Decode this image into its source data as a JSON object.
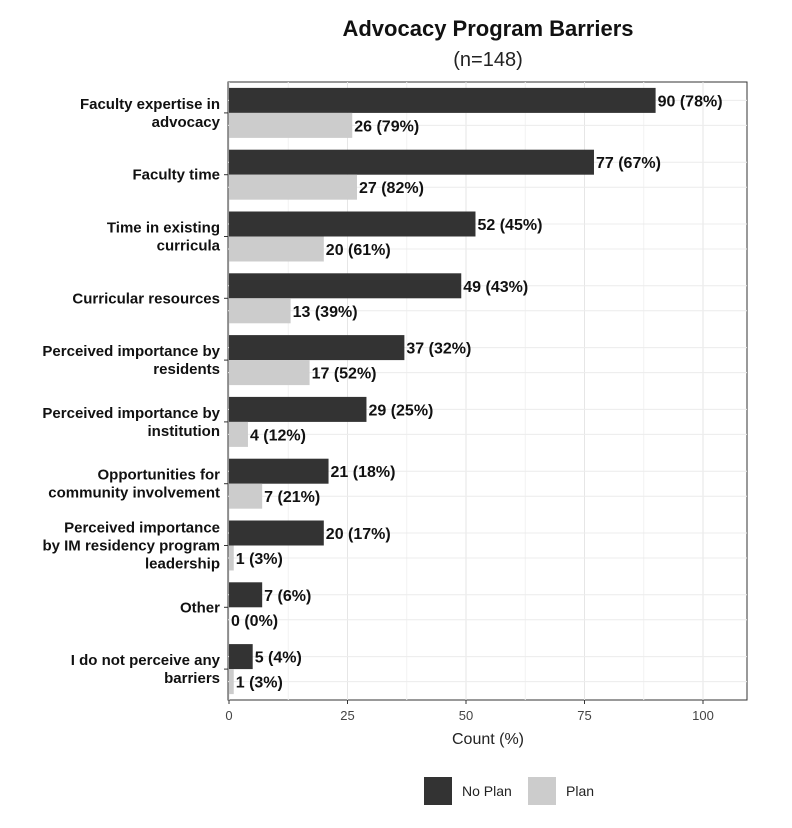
{
  "chart_data": {
    "type": "bar",
    "orientation": "horizontal",
    "title": "Advocacy Program Barriers",
    "subtitle": "(n=148)",
    "xlabel": "Count (%)",
    "ylabel": "",
    "xlim": [
      0,
      110
    ],
    "xticks": [
      0,
      25,
      50,
      75,
      100
    ],
    "grid": true,
    "legend_position": "bottom",
    "categories": [
      [
        "Faculty expertise in",
        "advocacy"
      ],
      [
        "Faculty time"
      ],
      [
        "Time in existing",
        "curricula"
      ],
      [
        "Curricular resources"
      ],
      [
        "Perceived importance by",
        "residents"
      ],
      [
        "Perceived importance by",
        "institution"
      ],
      [
        "Opportunities for",
        "community involvement"
      ],
      [
        "Perceived importance",
        "by IM residency program",
        "leadership"
      ],
      [
        "Other"
      ],
      [
        "I do not perceive any",
        "barriers"
      ]
    ],
    "series": [
      {
        "name": "No Plan",
        "color": "#333333",
        "values": [
          90,
          77,
          52,
          49,
          37,
          29,
          21,
          20,
          7,
          5
        ],
        "labels": [
          "90 (78%)",
          "77 (67%)",
          "52 (45%)",
          "49 (43%)",
          "37 (32%)",
          "29 (25%)",
          "21 (18%)",
          "20 (17%)",
          "7 (6%)",
          "5 (4%)"
        ]
      },
      {
        "name": "Plan",
        "color": "#cccccc",
        "values": [
          26,
          27,
          20,
          13,
          17,
          4,
          7,
          1,
          0,
          1
        ],
        "labels": [
          "26 (79%)",
          "27 (82%)",
          "20 (61%)",
          "13 (39%)",
          "17 (52%)",
          "4 (12%)",
          "7 (21%)",
          "1 (3%)",
          "0 (0%)",
          "1 (3%)"
        ]
      }
    ]
  }
}
